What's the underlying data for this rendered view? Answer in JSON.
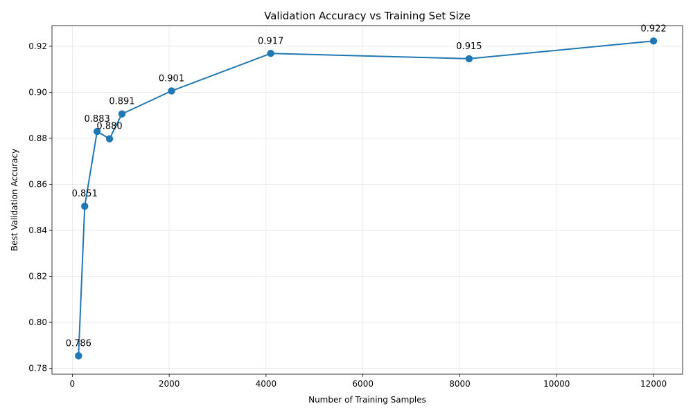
{
  "chart_data": {
    "type": "line",
    "title": "Validation Accuracy vs Training Set Size",
    "xlabel": "Number of Training Samples",
    "ylabel": "Best Validation Accuracy",
    "xlim": [
      -420,
      12600
    ],
    "ylim": [
      0.7775,
      0.929
    ],
    "xticks": [
      0,
      2000,
      4000,
      6000,
      8000,
      10000,
      12000
    ],
    "xtick_labels": [
      "0",
      "2000",
      "4000",
      "6000",
      "8000",
      "10000",
      "12000"
    ],
    "yticks": [
      0.78,
      0.8,
      0.82,
      0.84,
      0.86,
      0.88,
      0.9,
      0.92
    ],
    "ytick_labels": [
      "0.78",
      "0.80",
      "0.82",
      "0.84",
      "0.86",
      "0.88",
      "0.90",
      "0.92"
    ],
    "grid": true,
    "series": [
      {
        "color": "#1f77b4",
        "points": [
          {
            "x": 128,
            "y": 0.7855,
            "label": "0.786"
          },
          {
            "x": 256,
            "y": 0.8505,
            "label": "0.851"
          },
          {
            "x": 512,
            "y": 0.883,
            "label": "0.883"
          },
          {
            "x": 768,
            "y": 0.8798,
            "label": "0.880"
          },
          {
            "x": 1024,
            "y": 0.8906,
            "label": "0.891"
          },
          {
            "x": 2048,
            "y": 0.9006,
            "label": "0.901"
          },
          {
            "x": 4096,
            "y": 0.9169,
            "label": "0.917"
          },
          {
            "x": 8192,
            "y": 0.9146,
            "label": "0.915"
          },
          {
            "x": 12000,
            "y": 0.9223,
            "label": "0.922"
          }
        ]
      }
    ]
  }
}
